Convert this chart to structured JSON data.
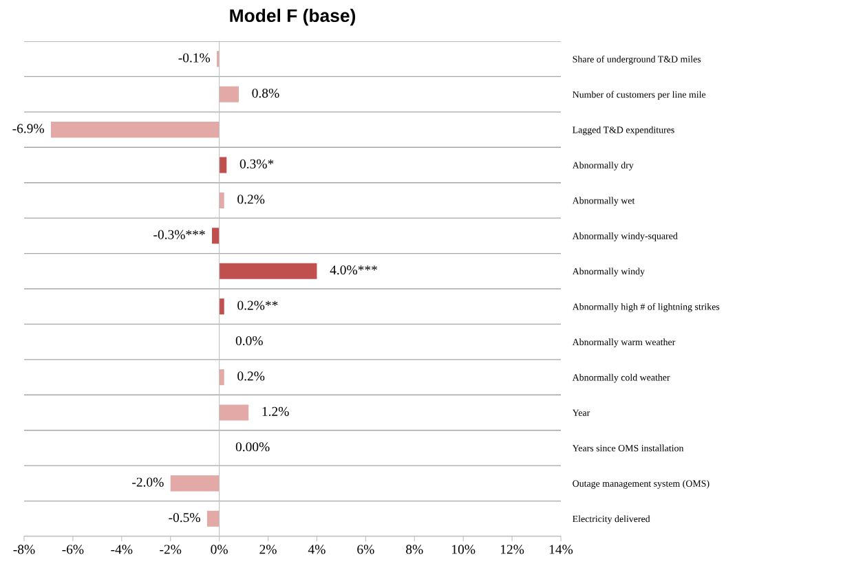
{
  "chart_data": {
    "type": "bar",
    "orientation": "horizontal",
    "title": "Model F (base)",
    "categories": [
      "Share of underground T&D miles",
      "Number of customers per line mile",
      "Lagged T&D expenditures",
      "Abnormally dry",
      "Abnormally wet",
      "Abnormally windy-squared",
      "Abnormally windy",
      "Abnormally high # of lightning strikes",
      "Abnormally warm weather",
      "Abnormally cold weather",
      "Year",
      "Years since OMS installation",
      "Outage management system (OMS)",
      "Electricity delivered"
    ],
    "values": [
      -0.1,
      0.8,
      -6.9,
      0.3,
      0.2,
      -0.3,
      4.0,
      0.2,
      0.0,
      0.2,
      1.2,
      0.0,
      -2.0,
      -0.5
    ],
    "value_labels": [
      "-0.1%",
      "0.8%",
      "-6.9%",
      "0.3%*",
      "0.2%",
      "-0.3%***",
      "4.0%***",
      "0.2%**",
      "0.0%",
      "0.2%",
      "1.2%",
      "0.00%",
      "-2.0%",
      "-0.5%"
    ],
    "colors": [
      "#e2a9a7",
      "#e2a9a7",
      "#e2a9a7",
      "#c0504d",
      "#e2a9a7",
      "#c0504d",
      "#c0504d",
      "#c0504d",
      "#e2a9a7",
      "#e2a9a7",
      "#e2a9a7",
      "#e2a9a7",
      "#e2a9a7",
      "#e2a9a7"
    ],
    "xlim": [
      -8,
      14
    ],
    "xticks": [
      {
        "value": -8,
        "label": "-8%"
      },
      {
        "value": -6,
        "label": "-6%"
      },
      {
        "value": -4,
        "label": "-4%"
      },
      {
        "value": -2,
        "label": "-2%"
      },
      {
        "value": 0,
        "label": "0%"
      },
      {
        "value": 2,
        "label": "2%"
      },
      {
        "value": 4,
        "label": "4%"
      },
      {
        "value": 6,
        "label": "6%"
      },
      {
        "value": 8,
        "label": "8%"
      },
      {
        "value": 10,
        "label": "10%"
      },
      {
        "value": 12,
        "label": "12%"
      },
      {
        "value": 14,
        "label": "14%"
      }
    ],
    "grid": "y",
    "legend": false
  }
}
